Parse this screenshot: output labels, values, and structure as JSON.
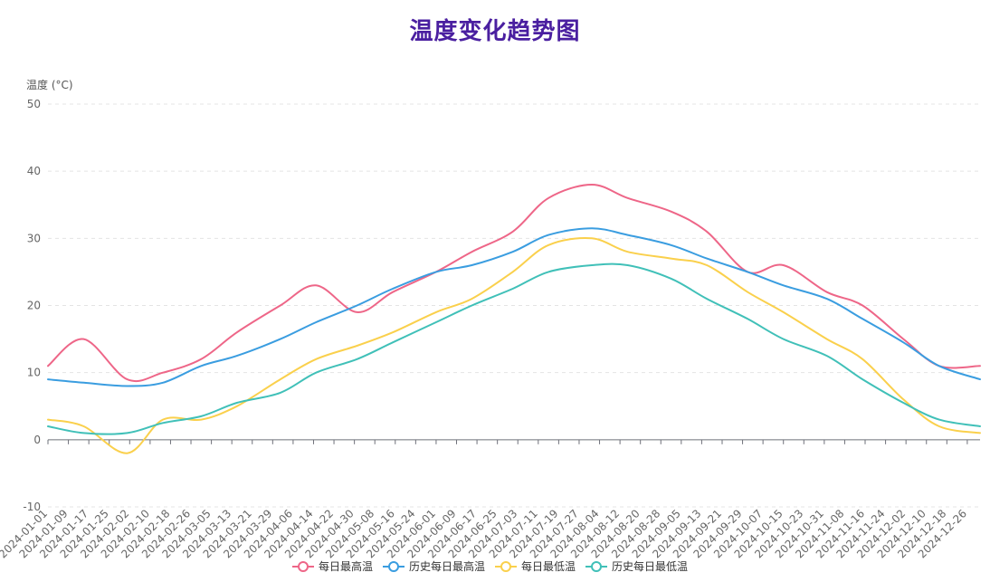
{
  "chart_data": {
    "type": "line",
    "title": "温度变化趋势图",
    "ylabel": "温度 (°C)",
    "xlabel": "",
    "ylim": [
      -10,
      50
    ],
    "yticks": [
      -10,
      0,
      10,
      20,
      30,
      40,
      50
    ],
    "grid": true,
    "legend_position": "bottom-center",
    "x_tick_labels": [
      "2024-01-01",
      "2024-01-09",
      "2024-01-17",
      "2024-01-25",
      "2024-02-02",
      "2024-02-10",
      "2024-02-18",
      "2024-02-26",
      "2024-03-05",
      "2024-03-13",
      "2024-03-21",
      "2024-03-29",
      "2024-04-06",
      "2024-04-14",
      "2024-04-22",
      "2024-04-30",
      "2024-05-08",
      "2024-05-16",
      "2024-05-24",
      "2024-06-01",
      "2024-06-09",
      "2024-06-17",
      "2024-06-25",
      "2024-07-03",
      "2024-07-11",
      "2024-07-19",
      "2024-07-27",
      "2024-08-04",
      "2024-08-12",
      "2024-08-20",
      "2024-08-28",
      "2024-09-05",
      "2024-09-13",
      "2024-09-21",
      "2024-09-29",
      "2024-10-07",
      "2024-10-15",
      "2024-10-23",
      "2024-10-31",
      "2024-11-08",
      "2024-11-16",
      "2024-11-24",
      "2024-12-02",
      "2024-12-10",
      "2024-12-18",
      "2024-12-26"
    ],
    "x": [
      "2024-01-01",
      "2024-01-15",
      "2024-02-01",
      "2024-02-15",
      "2024-03-01",
      "2024-03-15",
      "2024-04-01",
      "2024-04-15",
      "2024-05-01",
      "2024-05-15",
      "2024-06-01",
      "2024-06-15",
      "2024-07-01",
      "2024-07-15",
      "2024-08-01",
      "2024-08-15",
      "2024-09-01",
      "2024-09-15",
      "2024-10-01",
      "2024-10-15",
      "2024-11-01",
      "2024-11-15",
      "2024-12-01",
      "2024-12-15",
      "2024-12-31"
    ],
    "series": [
      {
        "name": "每日最高温",
        "color": "#ee6688",
        "values": [
          11,
          15,
          9,
          10,
          12,
          16,
          20,
          23,
          19,
          22,
          25,
          28,
          31,
          36,
          38,
          36,
          34,
          31,
          25,
          26,
          22,
          20,
          15,
          11,
          11
        ]
      },
      {
        "name": "历史每日最高温",
        "color": "#3a9de0",
        "values": [
          9,
          8.5,
          8,
          8.5,
          11,
          12.5,
          15,
          17.5,
          20,
          22.5,
          25,
          26,
          28,
          30.5,
          31.5,
          30.5,
          29,
          27,
          25,
          23,
          21,
          18,
          14.5,
          11,
          9
        ]
      },
      {
        "name": "每日最低温",
        "color": "#fad04c",
        "values": [
          3,
          2,
          -2,
          3,
          3,
          5,
          9,
          12,
          14,
          16,
          19,
          21,
          25,
          29,
          30,
          28,
          27,
          26,
          22,
          19,
          15,
          12,
          6,
          2,
          1
        ]
      },
      {
        "name": "历史每日最低温",
        "color": "#40c0b8",
        "values": [
          2,
          1,
          1,
          2.5,
          3.5,
          5.5,
          7,
          10,
          12,
          14.5,
          17.5,
          20,
          22.5,
          25,
          26,
          26,
          24,
          21,
          18,
          15,
          12.5,
          9,
          5.5,
          3,
          2
        ]
      }
    ]
  }
}
